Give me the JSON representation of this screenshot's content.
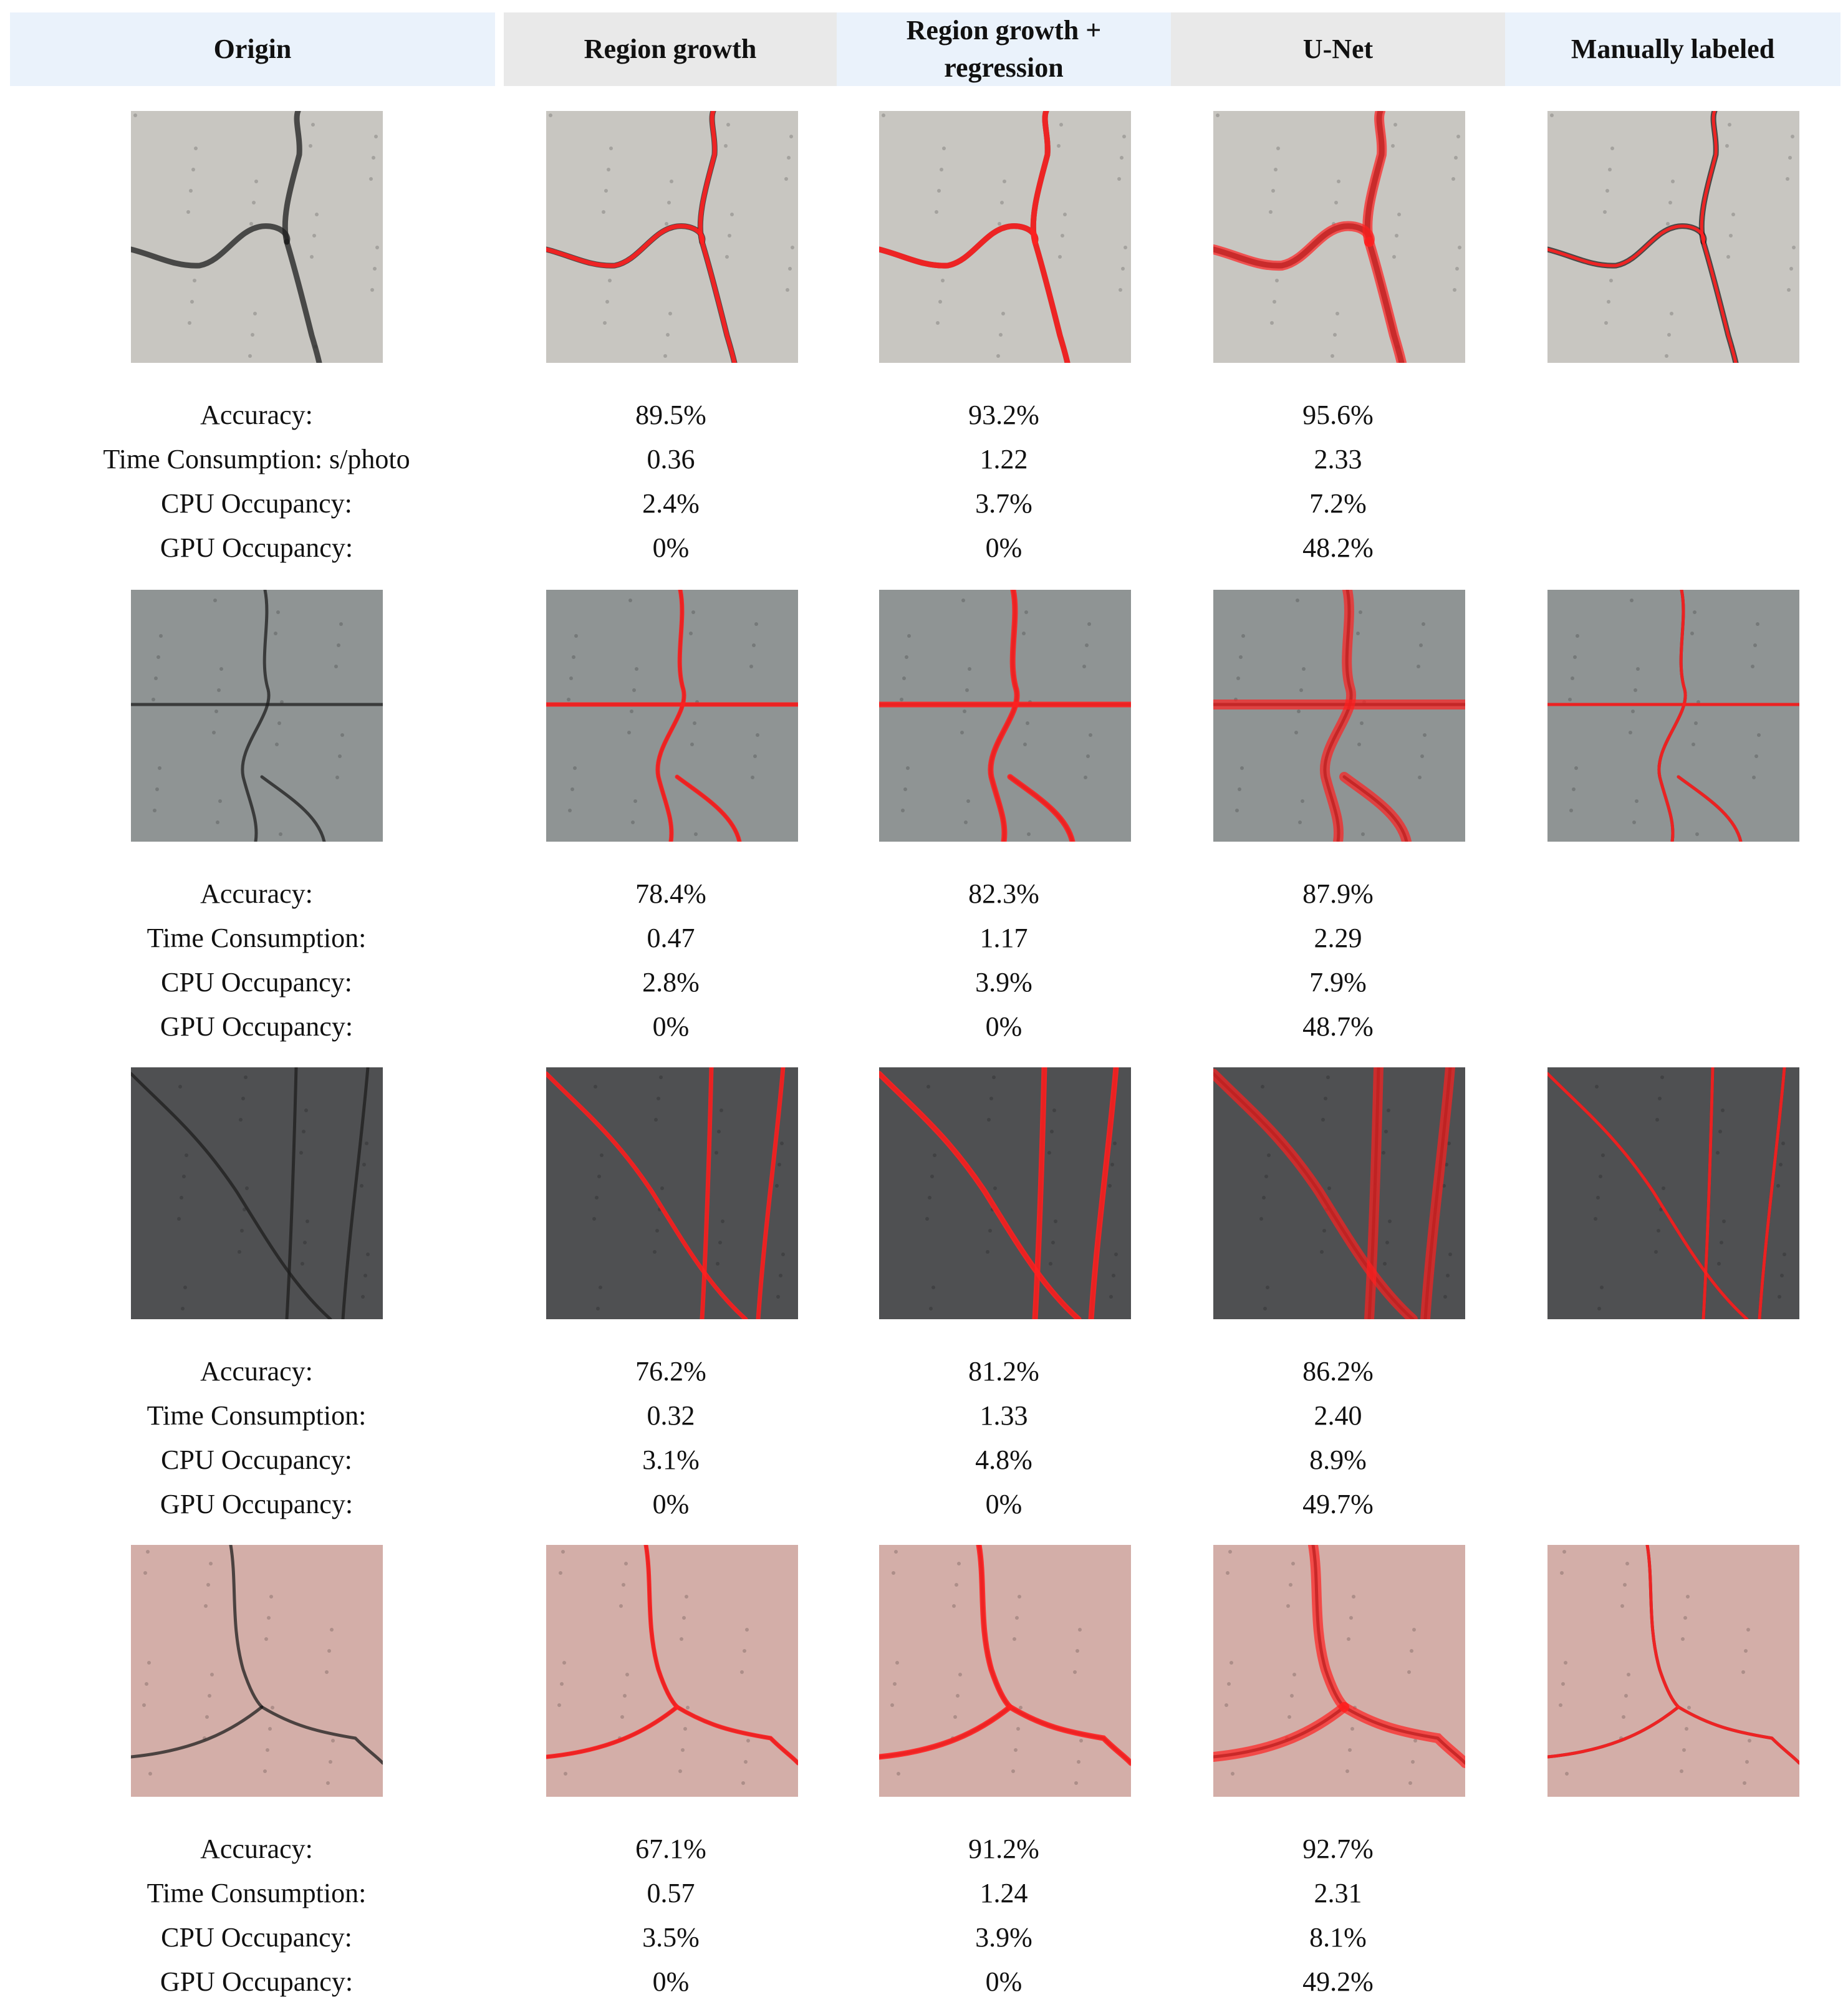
{
  "headers": [
    {
      "label": "Origin",
      "tone": "blue"
    },
    {
      "label": "Region growth",
      "tone": "gray"
    },
    {
      "label": "Region growth +\nregression",
      "tone": "blue"
    },
    {
      "label": "U-Net",
      "tone": "gray"
    },
    {
      "label": "Manually labeled",
      "tone": "blue"
    }
  ],
  "colors": {
    "crack_overlay": "#ff2020",
    "sample_backgrounds": [
      "#c8c6c1",
      "#8f9494",
      "#4f5052",
      "#d3aea8"
    ]
  },
  "samples": [
    {
      "images": [
        "original crack image",
        "region growth segmentation",
        "region growth + regression segmentation",
        "U-Net segmentation",
        "manual labels"
      ],
      "metrics": [
        {
          "label": "Accuracy:",
          "values": [
            "89.5%",
            "93.2%",
            "95.6%"
          ]
        },
        {
          "label": "Time Consumption: s/photo",
          "values": [
            "0.36",
            "1.22",
            "2.33"
          ]
        },
        {
          "label": "CPU Occupancy:",
          "values": [
            "2.4%",
            "3.7%",
            "7.2%"
          ]
        },
        {
          "label": "GPU Occupancy:",
          "values": [
            "0%",
            "0%",
            "48.2%"
          ]
        }
      ]
    },
    {
      "metrics": [
        {
          "label": "Accuracy:",
          "values": [
            "78.4%",
            "82.3%",
            "87.9%"
          ]
        },
        {
          "label": "Time Consumption:",
          "values": [
            "0.47",
            "1.17",
            "2.29"
          ]
        },
        {
          "label": "CPU Occupancy:",
          "values": [
            "2.8%",
            "3.9%",
            "7.9%"
          ]
        },
        {
          "label": "GPU Occupancy:",
          "values": [
            "0%",
            "0%",
            "48.7%"
          ]
        }
      ]
    },
    {
      "metrics": [
        {
          "label": "Accuracy:",
          "values": [
            "76.2%",
            "81.2%",
            "86.2%"
          ]
        },
        {
          "label": "Time Consumption:",
          "values": [
            "0.32",
            "1.33",
            "2.40"
          ]
        },
        {
          "label": "CPU Occupancy:",
          "values": [
            "3.1%",
            "4.8%",
            "8.9%"
          ]
        },
        {
          "label": "GPU Occupancy:",
          "values": [
            "0%",
            "0%",
            "49.7%"
          ]
        }
      ]
    },
    {
      "metrics": [
        {
          "label": "Accuracy:",
          "values": [
            "67.1%",
            "91.2%",
            "92.7%"
          ]
        },
        {
          "label": "Time Consumption:",
          "values": [
            "0.57",
            "1.24",
            "2.31"
          ]
        },
        {
          "label": "CPU Occupancy:",
          "values": [
            "3.5%",
            "3.9%",
            "8.1%"
          ]
        },
        {
          "label": "GPU Occupancy:",
          "values": [
            "0%",
            "0%",
            "49.2%"
          ]
        }
      ]
    }
  ]
}
